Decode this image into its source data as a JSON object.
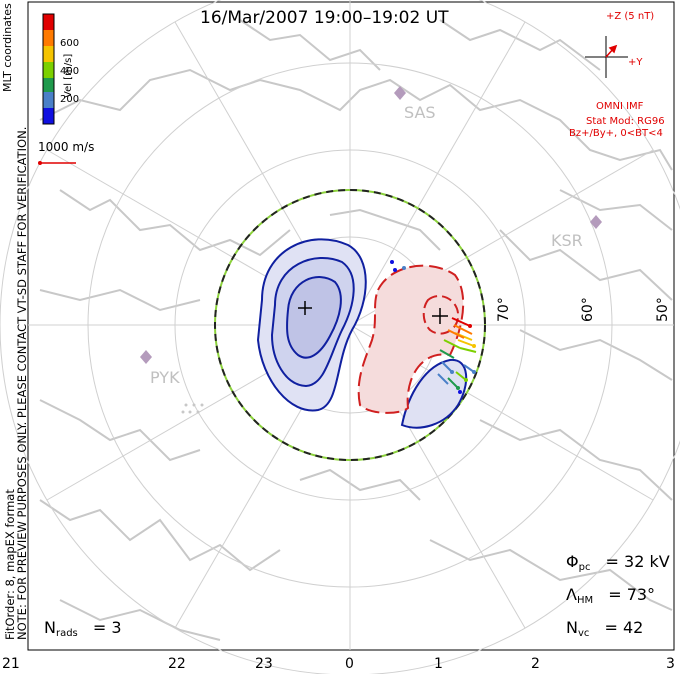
{
  "title": "16/Mar/2007 19:00–19:02 UT",
  "side_note": "NOTE: FOR PREVIEW PURPOSES ONLY. PLEASE CONTACT VT-SD STAFF FOR VERIFICATION.",
  "fit_info": "FitOrder: 8, mapEX format",
  "coord_label": "MLT coordinates",
  "color_scale": {
    "label": "Vel [m/s]",
    "ticks": [
      "600",
      "400",
      "200"
    ],
    "colors": [
      "#e00000",
      "#ff7a00",
      "#f5c400",
      "#7cd000",
      "#1f9a4c",
      "#4a80c8",
      "#1010e0"
    ]
  },
  "vector_scale": {
    "label": "1000 m/s",
    "icon": "velocity-vector-arrow"
  },
  "imf": {
    "z_label": "+Z (5 nT)",
    "y_label": "+Y",
    "source": "OMNI IMF",
    "model": "Stat Mod: RG96",
    "condition": "Bz+/By+, 0<BT<4",
    "color": "#e00000"
  },
  "stations": [
    {
      "id": "SAS",
      "icon": "radar-station-diamond"
    },
    {
      "id": "KSR",
      "icon": "radar-station-diamond"
    },
    {
      "id": "PYK",
      "icon": "radar-station-diamond"
    }
  ],
  "latitude_labels": [
    "70°",
    "60°",
    "50°"
  ],
  "stats": {
    "phi_pc": {
      "symbol": "Φ",
      "sub": "pc",
      "value": "= 32 kV"
    },
    "lambda_hm": {
      "symbol": "Λ",
      "sub": "HM",
      "value": "= 73°"
    },
    "n_vc": {
      "symbol": "N",
      "sub": "vc",
      "value": "= 42"
    },
    "n_rads": {
      "symbol": "N",
      "sub": "rads",
      "value": "= 3"
    }
  },
  "mlt_hours": [
    "21",
    "22",
    "23",
    "0",
    "1",
    "2",
    "3"
  ],
  "colors": {
    "coastline": "#c8c8c8",
    "grid": "#d0d0d0",
    "negative_cell": "#1020a0",
    "positive_cell": "#d02020",
    "hm_boundary": "#222222",
    "hm_boundary_alt": "#8cd23c"
  }
}
